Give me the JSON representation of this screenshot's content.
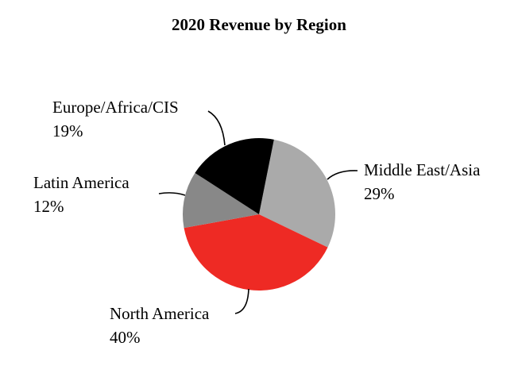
{
  "chart_data": {
    "type": "pie",
    "title": "2020 Revenue by Region",
    "categories": [
      "Middle East/Asia",
      "North America",
      "Latin America",
      "Europe/Africa/CIS"
    ],
    "values": [
      29,
      40,
      12,
      19
    ],
    "value_labels": [
      "29%",
      "40%",
      "12%",
      "19%"
    ],
    "colors": [
      "#aaaaaa",
      "#ee2a24",
      "#888888",
      "#000000"
    ]
  }
}
